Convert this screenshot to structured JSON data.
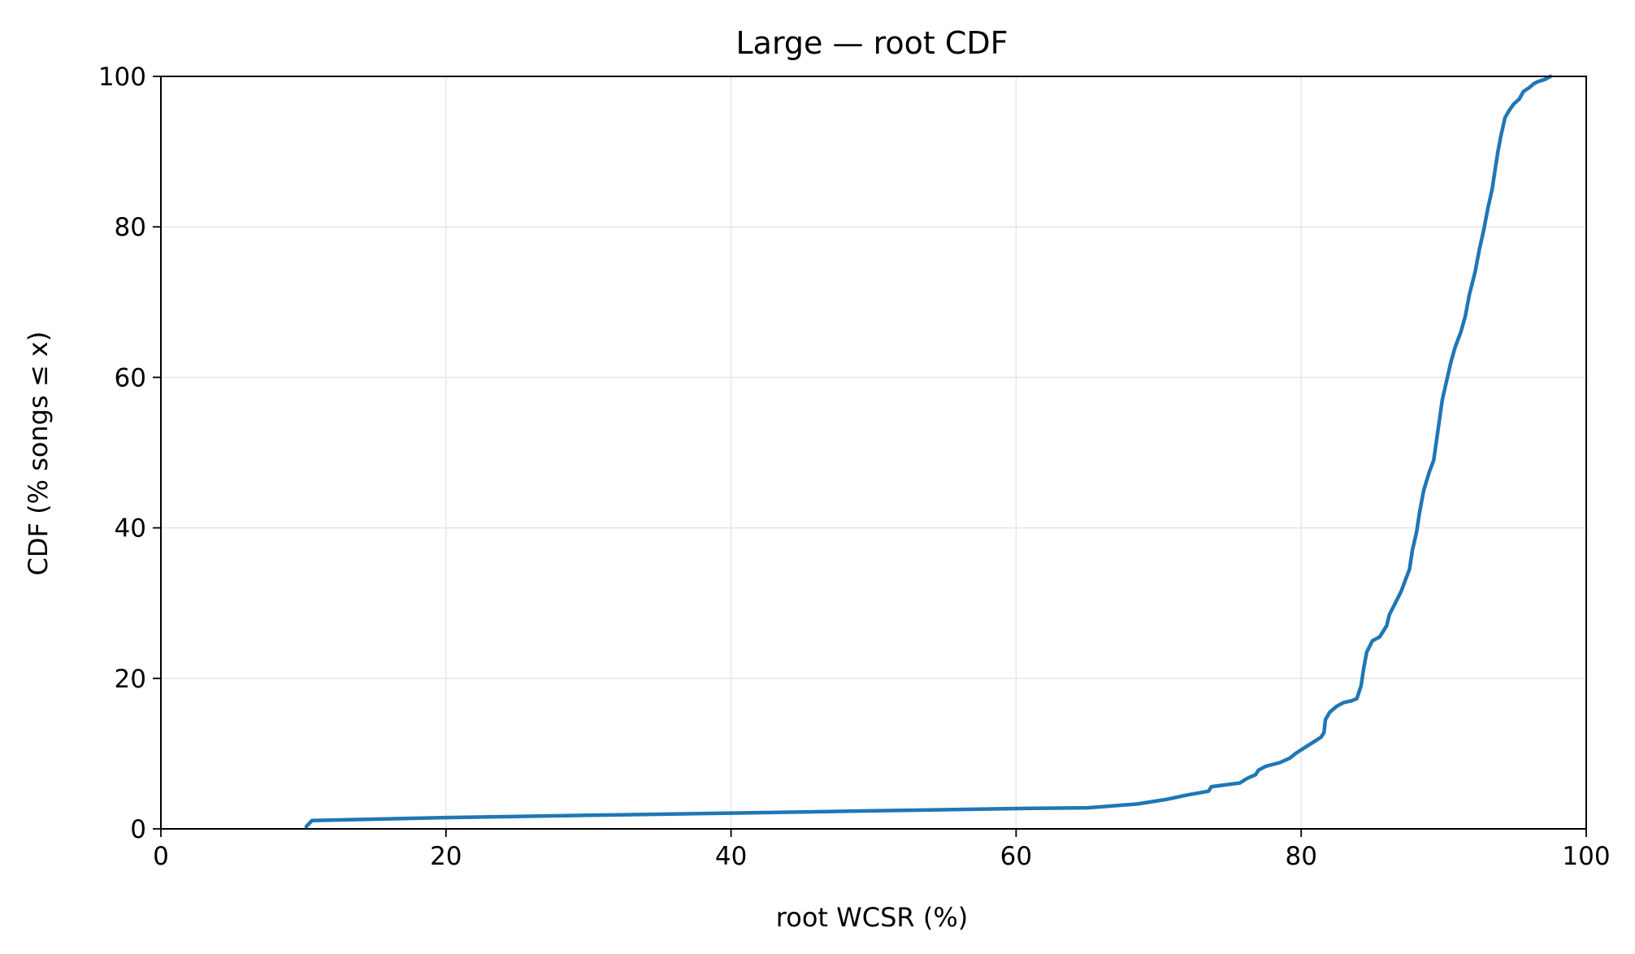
{
  "chart_data": {
    "type": "line",
    "title": "Large — root CDF",
    "xlabel": "root WCSR (%)",
    "ylabel": "CDF (% songs ≤ x)",
    "xlim": [
      0,
      100
    ],
    "ylim": [
      0,
      100
    ],
    "xticks": [
      "0",
      "20",
      "40",
      "60",
      "80",
      "100"
    ],
    "yticks": [
      "0",
      "20",
      "40",
      "60",
      "80",
      "100"
    ],
    "grid": true,
    "legend": "none",
    "colors": {
      "series": "#1f77b4",
      "grid": "#e6e6e6",
      "axis": "#000000"
    },
    "series": [
      {
        "x": [
          10.2,
          10.6,
          20,
          30,
          40,
          50,
          60,
          65,
          68.5,
          70.5,
          72,
          73.5,
          73.7,
          75.7,
          76.2,
          76.8,
          77,
          77.5,
          78.5,
          79.2,
          79.6,
          80,
          80.5,
          81,
          81.4,
          81.6,
          81.7,
          82,
          82.5,
          83,
          83.5,
          83.9,
          84.2,
          84.4,
          84.6,
          85,
          85.5,
          86,
          86.2,
          86.6,
          87,
          87.3,
          87.6,
          87.8,
          88.1,
          88.3,
          88.6,
          89,
          89.3,
          89.6,
          89.9,
          90.2,
          90.5,
          90.8,
          91.2,
          91.5,
          91.8,
          92.2,
          92.5,
          92.8,
          93.1,
          93.4,
          93.6,
          93.8,
          94.0,
          94.3,
          94.6,
          94.9,
          95.3,
          95.6,
          96.0,
          96.3,
          96.6,
          97.1,
          97.5
        ],
        "y": [
          0.3,
          1.1,
          1.5,
          1.8,
          2.1,
          2.4,
          2.7,
          2.8,
          3.3,
          3.9,
          4.5,
          5.0,
          5.6,
          6.1,
          6.7,
          7.2,
          7.8,
          8.3,
          8.8,
          9.4,
          10.0,
          10.5,
          11.1,
          11.7,
          12.2,
          12.8,
          14.5,
          15.5,
          16.3,
          16.8,
          17.0,
          17.3,
          19.0,
          21.5,
          23.5,
          25.0,
          25.5,
          27.0,
          28.5,
          30.0,
          31.5,
          33.0,
          34.5,
          37.0,
          39.5,
          42.0,
          45.0,
          47.5,
          49.0,
          53.0,
          57.0,
          59.5,
          62.0,
          64.0,
          66.0,
          68.0,
          71.0,
          74.0,
          77.0,
          79.5,
          82.5,
          85.0,
          87.5,
          90.0,
          92.0,
          94.5,
          95.5,
          96.3,
          97.0,
          98.0,
          98.5,
          99.0,
          99.3,
          99.6,
          100.0
        ]
      }
    ]
  }
}
